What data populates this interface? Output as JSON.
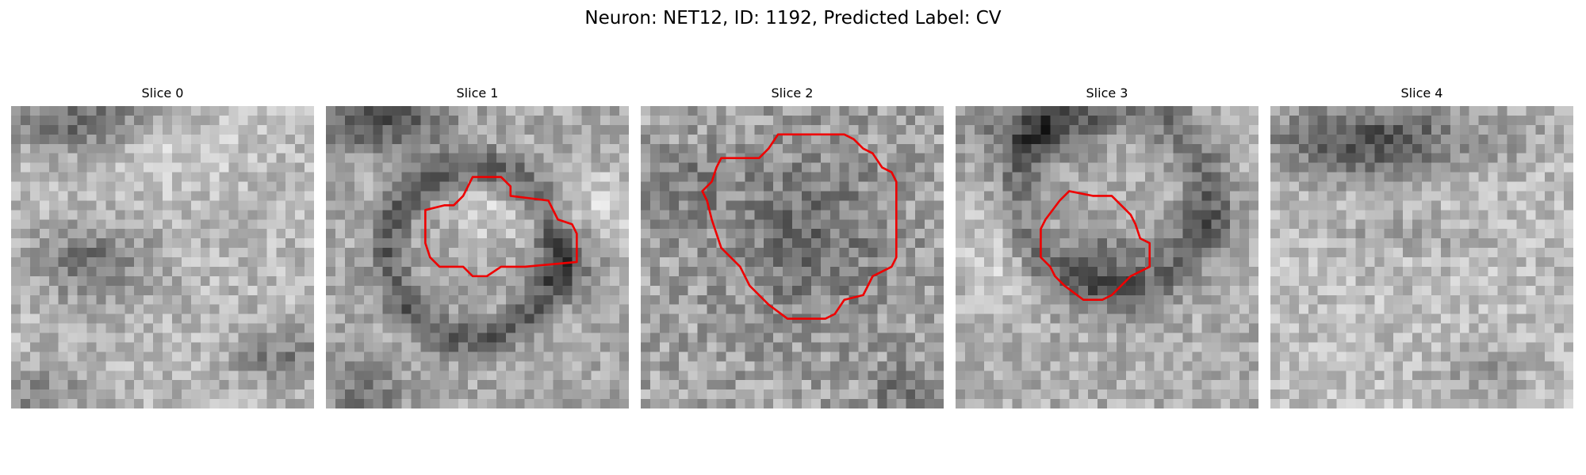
{
  "figure": {
    "title": "Neuron: NET12, ID: 1192, Predicted Label: CV",
    "contour_color": "#ee0000",
    "colormap": "gray"
  },
  "panels": [
    {
      "title": "Slice 0",
      "contour": null
    },
    {
      "title": "Slice 1",
      "contour": [
        [
          12.5,
          10.5
        ],
        [
          13.5,
          10.5
        ],
        [
          14.5,
          9.5
        ],
        [
          15.5,
          7.5
        ],
        [
          18.5,
          7.5
        ],
        [
          19.5,
          8.5
        ],
        [
          19.5,
          9.5
        ],
        [
          23.5,
          10
        ],
        [
          24.5,
          12
        ],
        [
          26,
          12.5
        ],
        [
          26.5,
          13.5
        ],
        [
          26.5,
          16.5
        ],
        [
          21,
          17
        ],
        [
          18.5,
          17
        ],
        [
          17,
          18
        ],
        [
          15.5,
          18
        ],
        [
          14.5,
          17
        ],
        [
          12,
          17
        ],
        [
          11,
          16
        ],
        [
          10.5,
          14.5
        ],
        [
          10.5,
          11
        ]
      ]
    },
    {
      "title": "Slice 2",
      "contour": [
        [
          8.5,
          5.5
        ],
        [
          12.5,
          5.5
        ],
        [
          13.5,
          4.5
        ],
        [
          14.5,
          3
        ],
        [
          18.5,
          3
        ],
        [
          21.5,
          3
        ],
        [
          22.5,
          3.5
        ],
        [
          23.5,
          4.5
        ],
        [
          24.5,
          5
        ],
        [
          25.5,
          6.5
        ],
        [
          26.5,
          7
        ],
        [
          27,
          8
        ],
        [
          27,
          16
        ],
        [
          26.5,
          17
        ],
        [
          25.5,
          17.5
        ],
        [
          24.5,
          18
        ],
        [
          23.5,
          20
        ],
        [
          21.5,
          20.5
        ],
        [
          20.5,
          22
        ],
        [
          19.5,
          22.5
        ],
        [
          15.5,
          22.5
        ],
        [
          13.5,
          21
        ],
        [
          12.5,
          20
        ],
        [
          11.5,
          19
        ],
        [
          10.5,
          17
        ],
        [
          9.5,
          16
        ],
        [
          8.5,
          15
        ],
        [
          8,
          13.5
        ],
        [
          7.5,
          12
        ],
        [
          7,
          10
        ],
        [
          6.5,
          9
        ],
        [
          7.5,
          8
        ],
        [
          8,
          6.5
        ]
      ]
    },
    {
      "title": "Slice 3",
      "contour": [
        [
          14.5,
          9.5
        ],
        [
          16.5,
          9.5
        ],
        [
          17.5,
          10.5
        ],
        [
          18.5,
          11.5
        ],
        [
          19,
          12.5
        ],
        [
          19.5,
          14
        ],
        [
          20.5,
          14.5
        ],
        [
          20.5,
          17
        ],
        [
          19.5,
          17.5
        ],
        [
          18.5,
          18
        ],
        [
          17.5,
          19
        ],
        [
          16.5,
          20
        ],
        [
          15.5,
          20.5
        ],
        [
          13.5,
          20.5
        ],
        [
          11.5,
          19
        ],
        [
          10.5,
          18
        ],
        [
          10,
          17
        ],
        [
          9,
          16
        ],
        [
          9,
          13
        ],
        [
          9.5,
          12
        ],
        [
          11,
          10
        ],
        [
          12,
          9
        ]
      ]
    },
    {
      "title": "Slice 4",
      "contour": null
    }
  ]
}
